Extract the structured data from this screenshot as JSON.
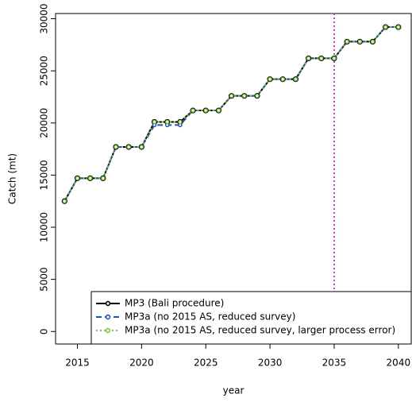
{
  "chart_data": {
    "type": "line",
    "x_label": "year",
    "y_label": "Catch (mt)",
    "x": [
      2014,
      2015,
      2016,
      2017,
      2018,
      2019,
      2020,
      2021,
      2022,
      2023,
      2024,
      2025,
      2026,
      2027,
      2028,
      2029,
      2030,
      2031,
      2032,
      2033,
      2034,
      2035,
      2036,
      2037,
      2038,
      2039,
      2040
    ],
    "series": [
      {
        "name": "MP3 (Bali procedure)",
        "color": "#000000",
        "dash": "solid",
        "values": [
          12500,
          14700,
          14700,
          14700,
          17700,
          17700,
          17700,
          20100,
          20100,
          20100,
          21200,
          21200,
          21200,
          22600,
          22600,
          22600,
          24200,
          24200,
          24200,
          26200,
          26200,
          26200,
          27800,
          27800,
          27800,
          29200,
          29200
        ]
      },
      {
        "name": "MP3a (no 2015 AS, reduced survey)",
        "color": "#2a4fa8",
        "dash": "dashed",
        "values": [
          12500,
          14700,
          14700,
          14700,
          17700,
          17700,
          17700,
          19800,
          19800,
          19800,
          21200,
          21200,
          21200,
          22600,
          22600,
          22600,
          24200,
          24200,
          24200,
          26200,
          26200,
          26200,
          27800,
          27800,
          27800,
          29200,
          29200
        ]
      },
      {
        "name": "MP3a (no 2015 AS, reduced survey, larger process error)",
        "color": "#7cc43a",
        "dash": "dotted",
        "values": [
          12500,
          14700,
          14700,
          14700,
          17700,
          17700,
          17700,
          20100,
          20100,
          20100,
          21200,
          21200,
          21200,
          22600,
          22600,
          22600,
          24200,
          24200,
          24200,
          26200,
          26200,
          26200,
          27800,
          27800,
          27800,
          29200,
          29200
        ]
      }
    ],
    "vline": 2035,
    "vline_color": "#c040c0",
    "xlim": [
      2013.3,
      2041
    ],
    "ylim": [
      -1200,
      30500
    ],
    "xticks": [
      2015,
      2020,
      2025,
      2030,
      2035,
      2040
    ],
    "yticks": [
      0,
      5000,
      10000,
      15000,
      20000,
      25000,
      30000
    ],
    "legend": "bottom-right"
  }
}
